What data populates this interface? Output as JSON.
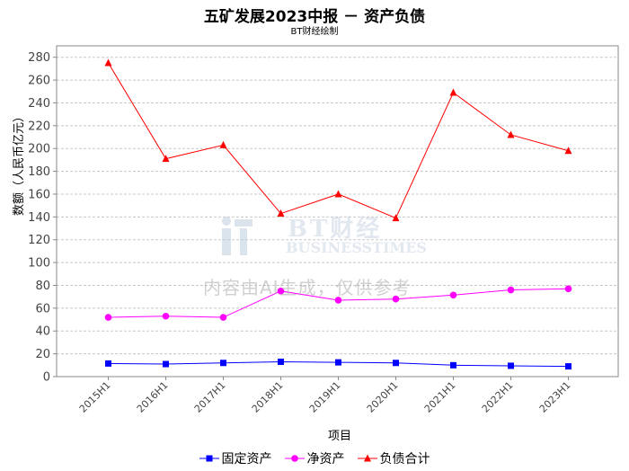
{
  "chart_data": {
    "type": "line",
    "title": "五矿发展2023中报 － 资产负债",
    "subtitle": "BT财经绘制",
    "xlabel": "项目",
    "ylabel": "数额（人民币亿元）",
    "categories": [
      "2015H1",
      "2016H1",
      "2017H1",
      "2018H1",
      "2019H1",
      "2020H1",
      "2021H1",
      "2022H1",
      "2023H1"
    ],
    "ylim": [
      0,
      290
    ],
    "yticks": [
      0,
      20,
      40,
      60,
      80,
      100,
      120,
      140,
      160,
      180,
      200,
      220,
      240,
      260,
      280
    ],
    "grid": true,
    "legend_position": "bottom",
    "series": [
      {
        "name": "固定资产",
        "color": "#0000ff",
        "marker": "square",
        "values": [
          11.5,
          11,
          12,
          13,
          12.5,
          12,
          10,
          9.5,
          9
        ]
      },
      {
        "name": "净资产",
        "color": "#ff00ff",
        "marker": "circle",
        "values": [
          52,
          53,
          52,
          75,
          67,
          68,
          71.5,
          76,
          77
        ]
      },
      {
        "name": "负债合计",
        "color": "#ff0000",
        "marker": "triangle",
        "values": [
          275,
          191,
          203,
          143,
          160,
          139,
          249,
          212,
          198
        ]
      }
    ]
  },
  "watermark": {
    "brand": "BT财经",
    "brand_en": "BUSINESSTIMES",
    "text": "内容由AI生成，仅供参考"
  }
}
